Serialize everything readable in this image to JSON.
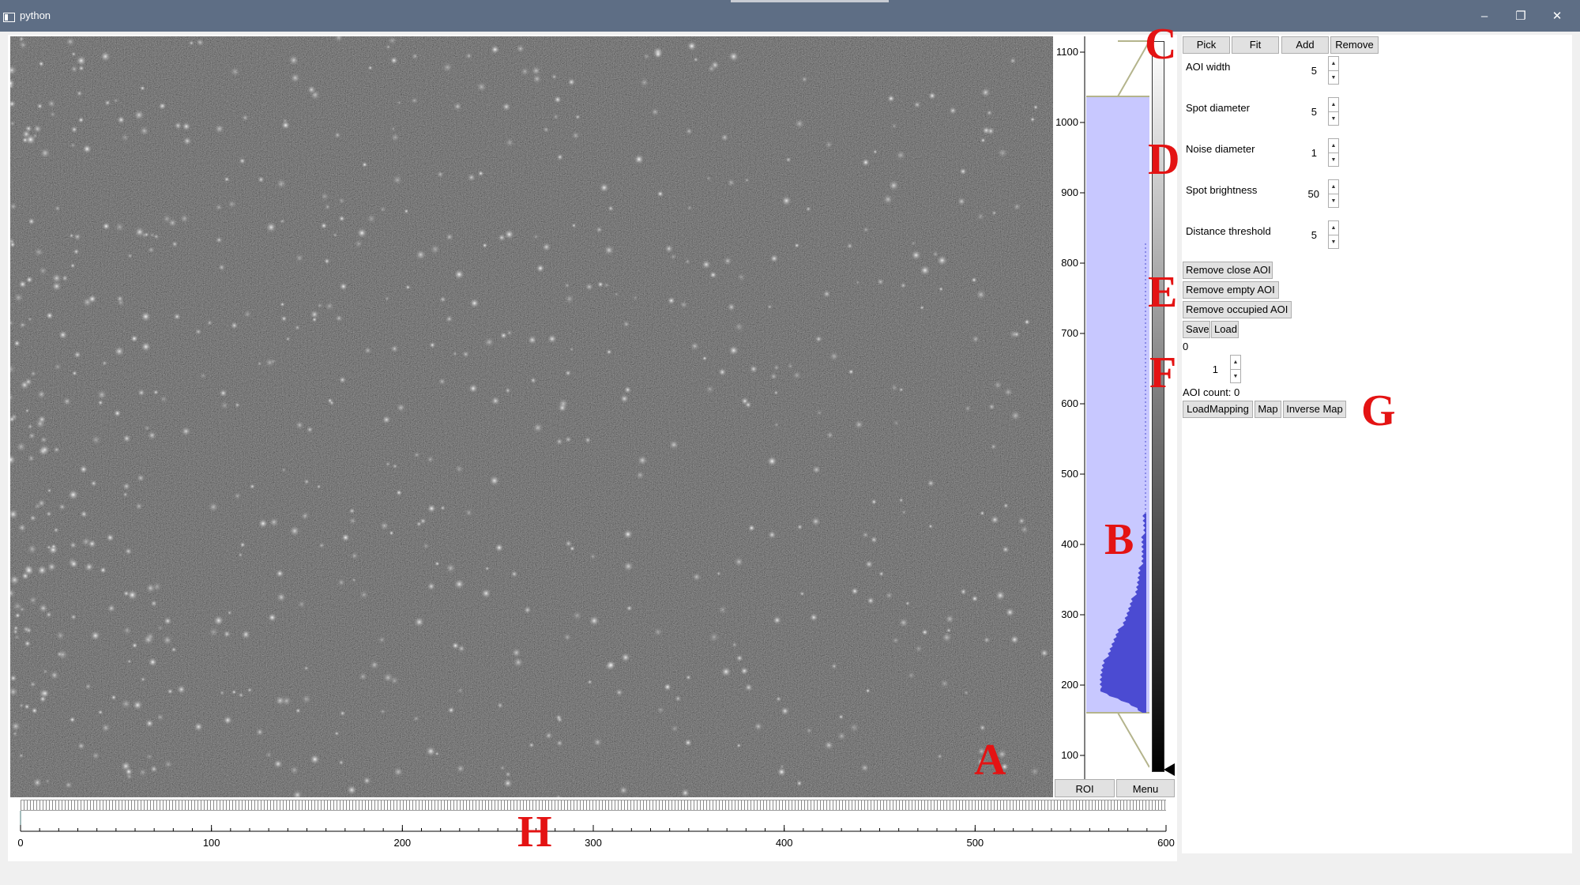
{
  "window": {
    "title": "python",
    "minimize_icon": "minimize-icon",
    "maximize_icon": "restore-icon",
    "close_icon": "close-icon"
  },
  "histogram": {
    "axis_ticks": [
      "1100",
      "1000",
      "900",
      "800",
      "700",
      "600",
      "500",
      "400",
      "300",
      "200",
      "100"
    ],
    "fill_color": "#c8c8ff",
    "curve_color": "#4b4bd2",
    "roi_label": "ROI",
    "menu_label": "Menu"
  },
  "timeline": {
    "ticks": [
      "0",
      "100",
      "200",
      "300",
      "400",
      "500",
      "600"
    ]
  },
  "controls": {
    "pick_label": "Pick",
    "fit_label": "Fit",
    "add_label": "Add",
    "remove_label": "Remove",
    "params": [
      {
        "label": "AOI width",
        "value": "5"
      },
      {
        "label": "Spot diameter",
        "value": "5"
      },
      {
        "label": "Noise diameter",
        "value": "1"
      },
      {
        "label": "Spot brightness",
        "value": "50"
      },
      {
        "label": "Distance threshold",
        "value": "5"
      }
    ],
    "remove_close_label": "Remove close AOI",
    "remove_empty_label": "Remove empty AOI",
    "remove_occupied_label": "Remove occupied AOI",
    "save_label": "Save",
    "load_label": "Load",
    "status_value": "0",
    "frame_value": "1",
    "aoi_count": "AOI count: 0",
    "load_mapping_label": "LoadMapping",
    "map_label": "Map",
    "inverse_map_label": "Inverse Map"
  },
  "annotations": [
    "A",
    "B",
    "C",
    "D",
    "E",
    "F",
    "G",
    "H"
  ]
}
